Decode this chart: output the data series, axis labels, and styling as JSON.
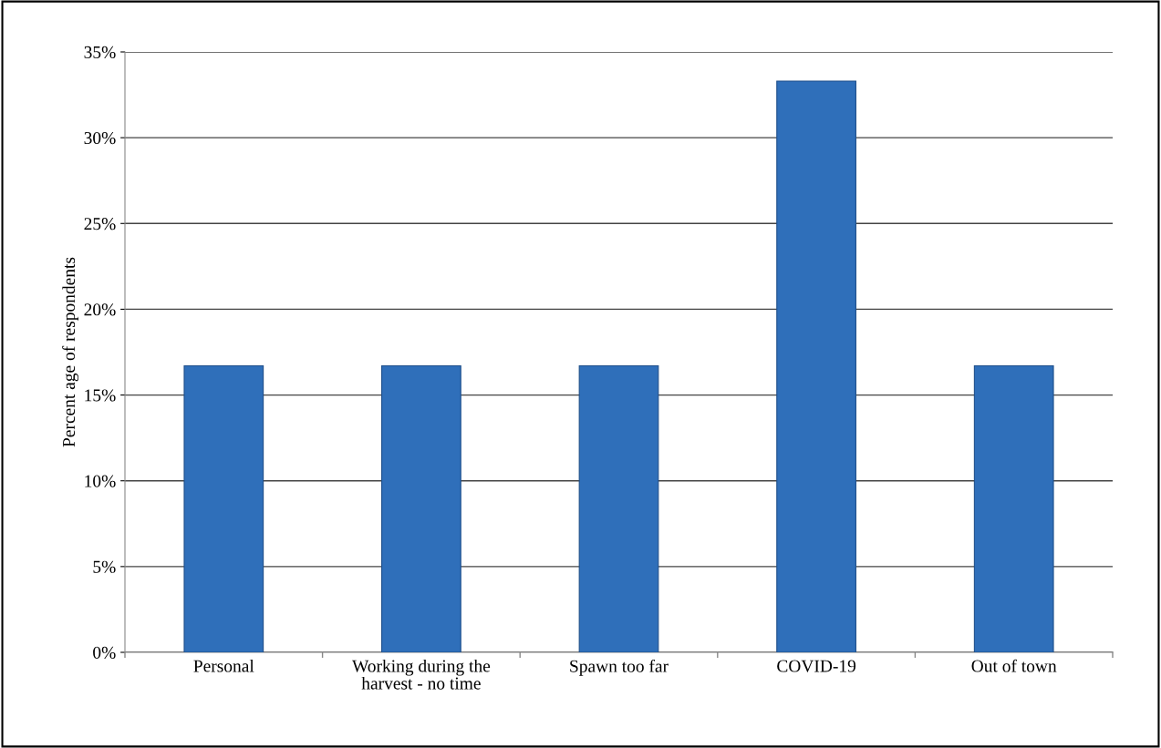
{
  "chart_data": {
    "type": "bar",
    "ylabel": "Percent age of respondents",
    "categories": [
      "Personal",
      "Working during the harvest - no time",
      "Spawn too far",
      "COVID-19",
      "Out of town"
    ],
    "values": [
      16.7,
      16.7,
      16.7,
      33.3,
      16.7
    ],
    "color": "#2f6fba",
    "ylim": [
      0,
      35
    ],
    "yticks": [
      {
        "value": 0,
        "label": "0%"
      },
      {
        "value": 5,
        "label": "5%"
      },
      {
        "value": 10,
        "label": "10%"
      },
      {
        "value": 15,
        "label": "15%"
      },
      {
        "value": 20,
        "label": "20%"
      },
      {
        "value": 25,
        "label": "25%"
      },
      {
        "value": 30,
        "label": "30%"
      },
      {
        "value": 35,
        "label": "35%"
      }
    ],
    "grid": "y",
    "legend": false
  }
}
